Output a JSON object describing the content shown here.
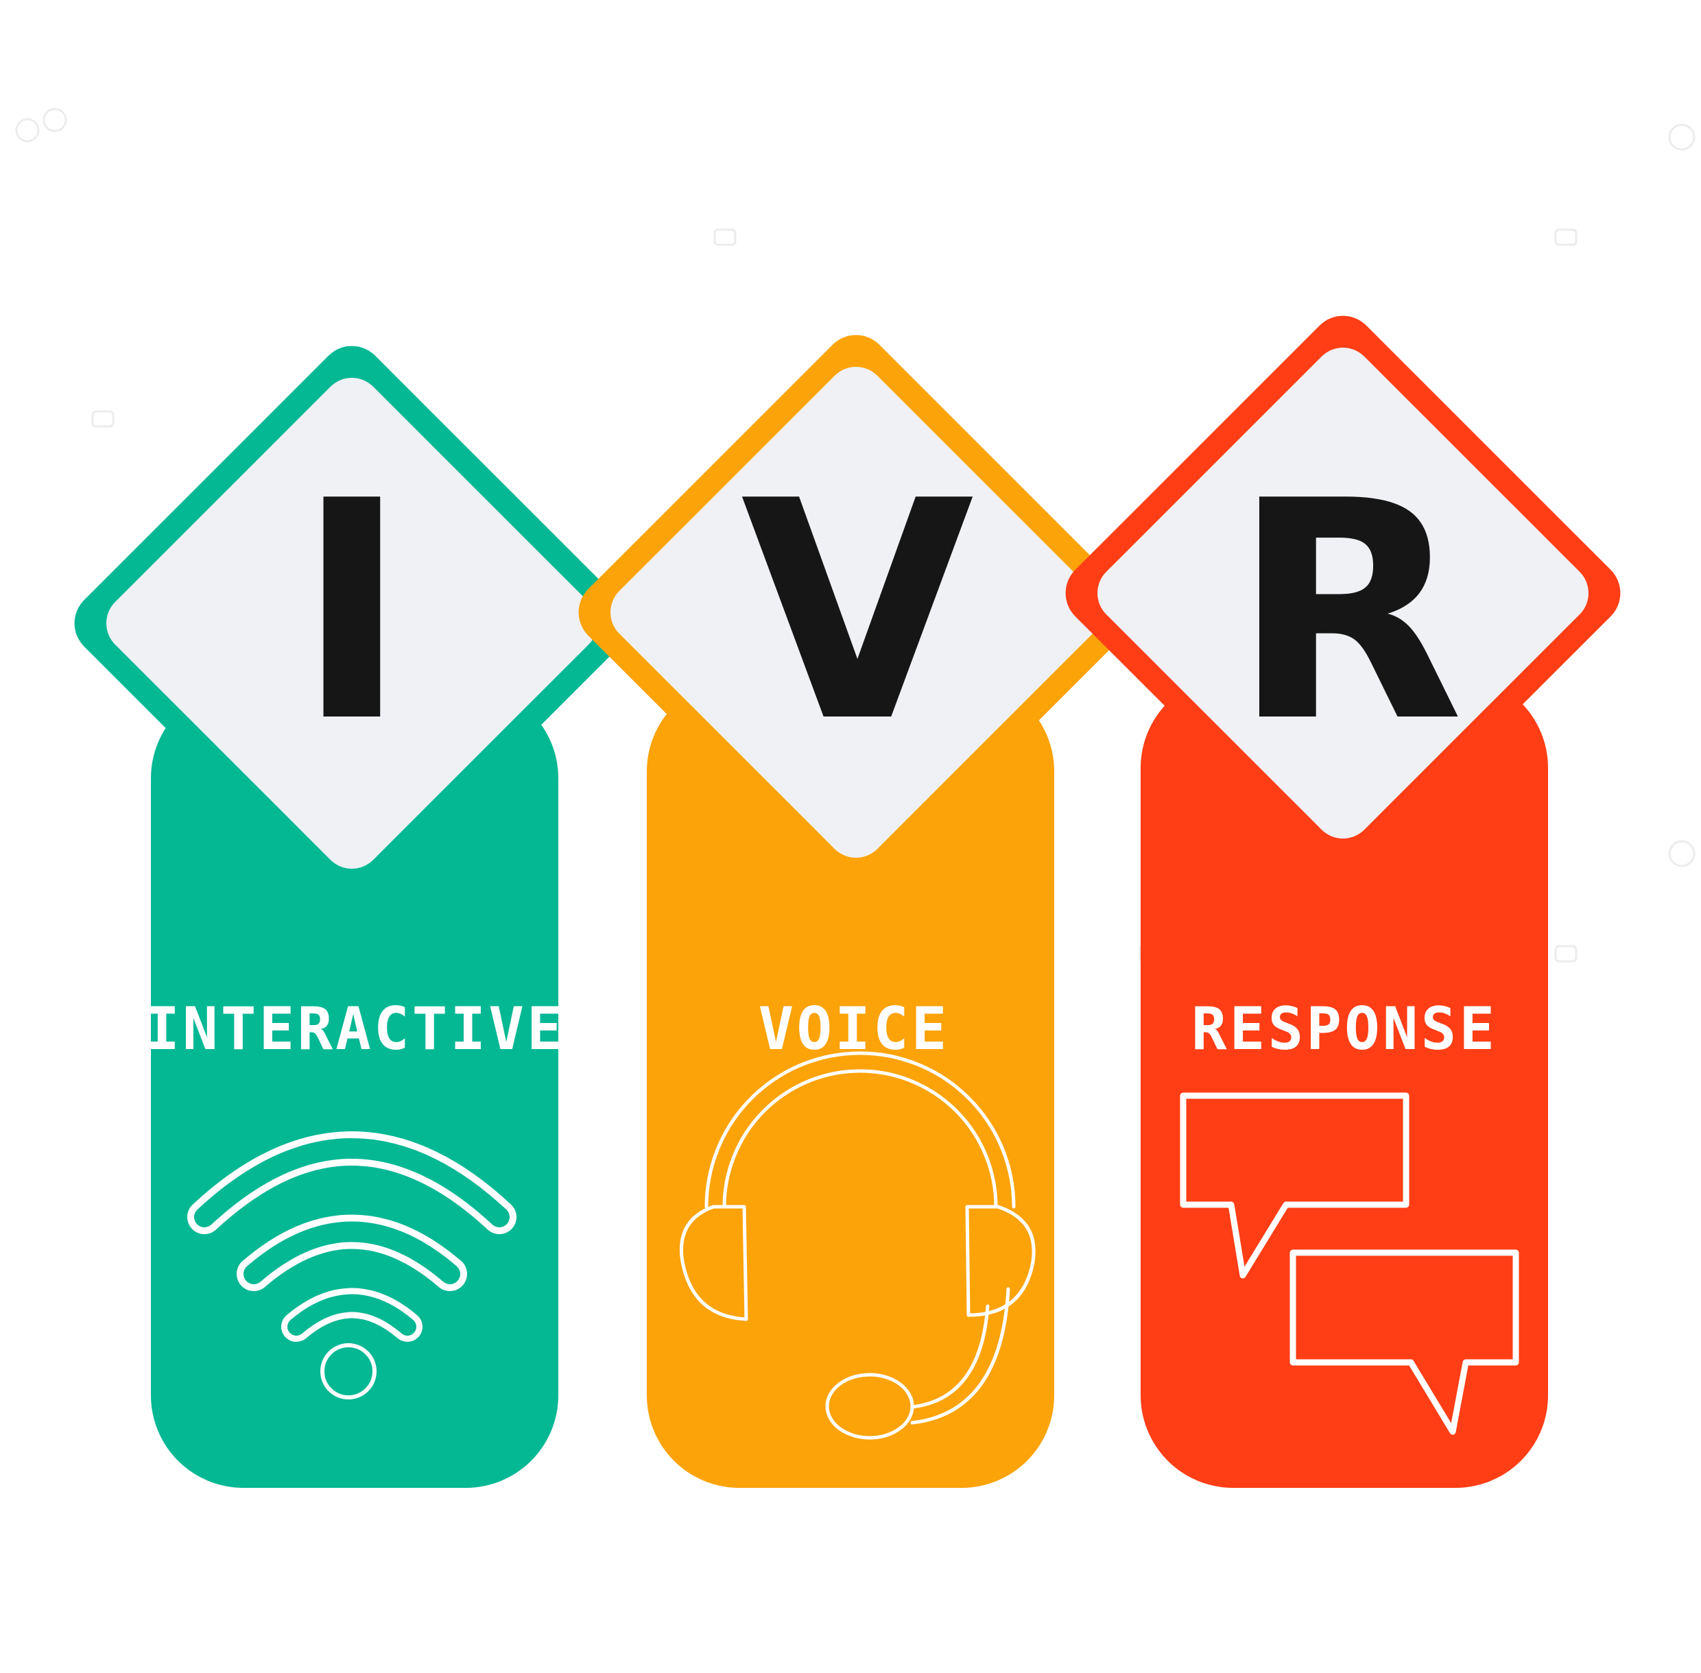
{
  "colors": {
    "background": "#ffffff",
    "tile_fill": "#f0f1f5",
    "letter": "#161616",
    "icon_stroke": "#ffffff",
    "green": "#05b894",
    "orange": "#fca30a",
    "red": "#ff3e16"
  },
  "columns": [
    {
      "letter": "I",
      "word": "INTERACTIVE",
      "color": "#05b894",
      "icon": "wifi-icon"
    },
    {
      "letter": "V",
      "word": "VOICE",
      "color": "#fca30a",
      "icon": "headset-icon"
    },
    {
      "letter": "R",
      "word": "RESPONSE",
      "color": "#ff3e16",
      "icon": "chat-bubbles-icon"
    }
  ]
}
